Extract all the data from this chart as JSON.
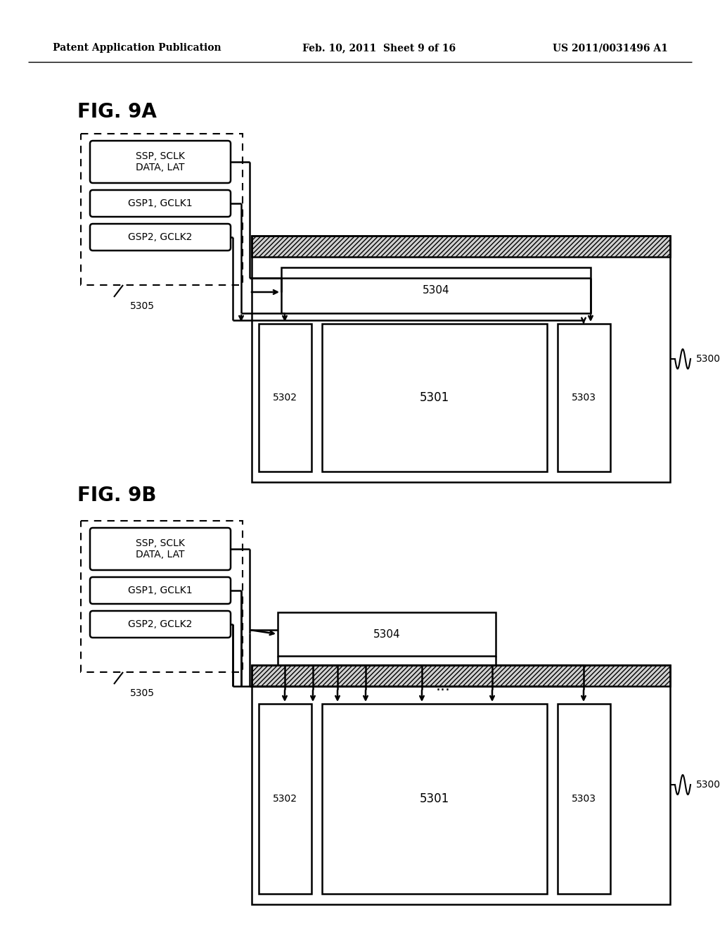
{
  "header_left": "Patent Application Publication",
  "header_mid": "Feb. 10, 2011  Sheet 9 of 16",
  "header_right": "US 2011/0031496 A1",
  "fig_a_label": "FIG. 9A",
  "fig_b_label": "FIG. 9B",
  "background": "#ffffff",
  "line_color": "#000000"
}
